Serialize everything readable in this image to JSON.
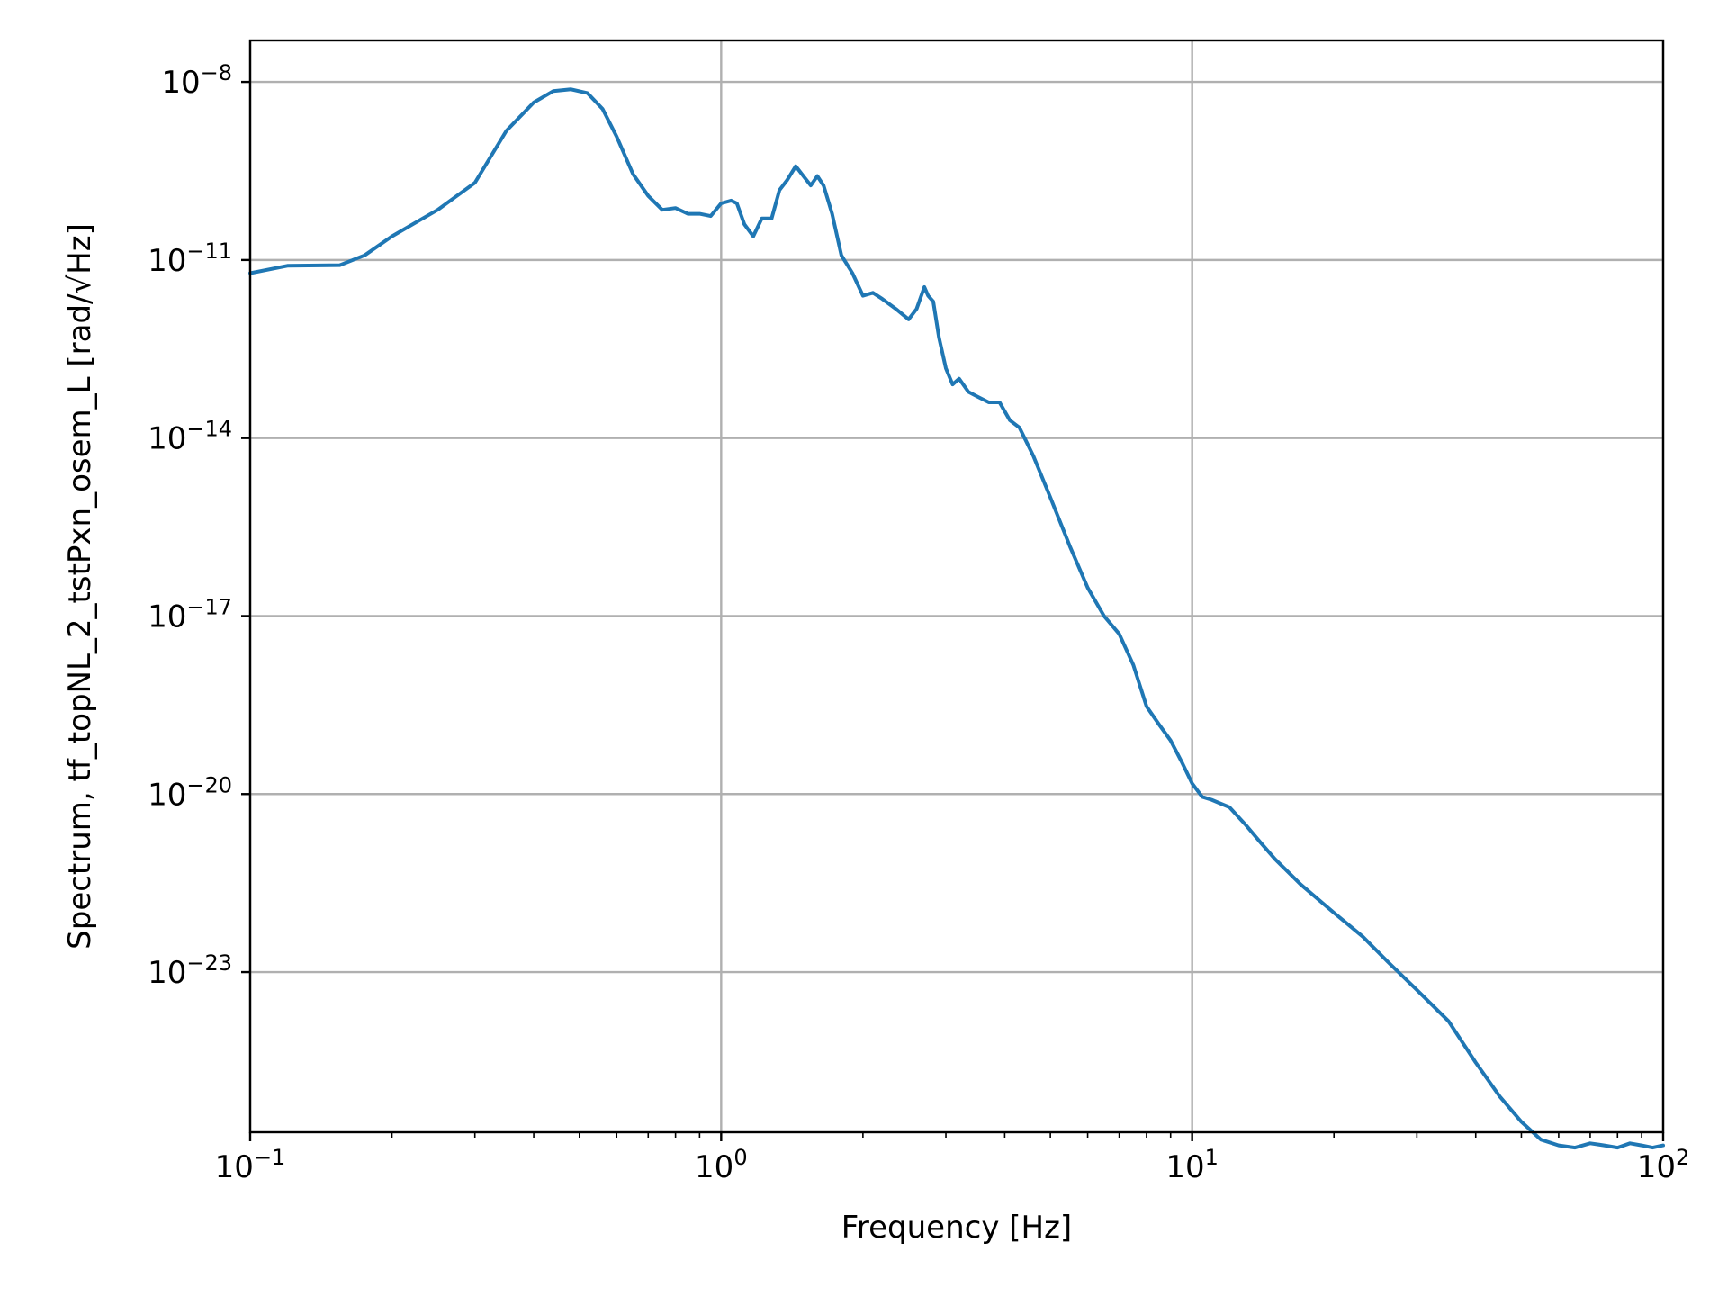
{
  "chart_data": {
    "type": "line",
    "xlabel": "Frequency [Hz]",
    "ylabel": "Spectrum, tf_topNL_2_tstPxn_osem_L [rad/√Hz]",
    "x_scale": "log",
    "y_scale": "log",
    "xlim": [
      0.1,
      100
    ],
    "ylim": [
      2e-26,
      5e-08
    ],
    "grid": true,
    "legend": "none",
    "line_color": "#1f77b4",
    "x_ticks": [
      {
        "base": "10",
        "exp": "−1",
        "value": 0.1
      },
      {
        "base": "10",
        "exp": "0",
        "value": 1
      },
      {
        "base": "10",
        "exp": "1",
        "value": 10
      },
      {
        "base": "10",
        "exp": "2",
        "value": 100
      }
    ],
    "y_ticks": [
      {
        "base": "10",
        "exp": "−8",
        "value": 1e-08
      },
      {
        "base": "10",
        "exp": "−11",
        "value": 1e-11
      },
      {
        "base": "10",
        "exp": "−14",
        "value": 1e-14
      },
      {
        "base": "10",
        "exp": "−17",
        "value": 1e-17
      },
      {
        "base": "10",
        "exp": "−20",
        "value": 1e-20
      },
      {
        "base": "10",
        "exp": "−23",
        "value": 1e-23
      }
    ],
    "series": [
      {
        "x": [
          0.1,
          0.12,
          0.155,
          0.175,
          0.2,
          0.25,
          0.3,
          0.35,
          0.4,
          0.44,
          0.48,
          0.52,
          0.56,
          0.6,
          0.65,
          0.7,
          0.75,
          0.8,
          0.85,
          0.9,
          0.95,
          1.0,
          1.05,
          1.08,
          1.12,
          1.17,
          1.22,
          1.28,
          1.33,
          1.38,
          1.44,
          1.5,
          1.55,
          1.6,
          1.65,
          1.72,
          1.8,
          1.9,
          2.0,
          2.1,
          2.2,
          2.35,
          2.5,
          2.6,
          2.7,
          2.75,
          2.82,
          2.9,
          3.0,
          3.1,
          3.2,
          3.35,
          3.5,
          3.7,
          3.9,
          4.1,
          4.3,
          4.6,
          5.0,
          5.5,
          6.0,
          6.5,
          7.0,
          7.5,
          8.0,
          8.5,
          9.0,
          9.5,
          10.0,
          10.5,
          11,
          12,
          13,
          14,
          15,
          17,
          20,
          23,
          26,
          30,
          35,
          40,
          45,
          50,
          55,
          60,
          65,
          70,
          75,
          80,
          85,
          90,
          95,
          100
        ],
        "y": [
          6e-12,
          8e-12,
          8.2e-12,
          1.2e-11,
          2.5e-11,
          7e-11,
          2e-10,
          1.5e-09,
          4.5e-09,
          7e-09,
          7.5e-09,
          6.5e-09,
          3.5e-09,
          1.2e-09,
          2.8e-10,
          1.2e-10,
          7e-11,
          7.5e-11,
          6e-11,
          6e-11,
          5.5e-11,
          9e-11,
          1e-10,
          9e-11,
          4e-11,
          2.5e-11,
          5e-11,
          5e-11,
          1.5e-10,
          2.2e-10,
          3.8e-10,
          2.5e-10,
          1.8e-10,
          2.6e-10,
          1.8e-10,
          6e-11,
          1.2e-11,
          6e-12,
          2.5e-12,
          2.8e-12,
          2.2e-12,
          1.5e-12,
          1e-12,
          1.5e-12,
          3.5e-12,
          2.5e-12,
          2e-12,
          5e-13,
          1.5e-13,
          8e-14,
          1e-13,
          6e-14,
          5e-14,
          4e-14,
          4e-14,
          2e-14,
          1.5e-14,
          5e-15,
          1e-15,
          1.5e-16,
          3e-17,
          1e-17,
          5e-18,
          1.5e-18,
          3e-19,
          1.5e-19,
          8e-20,
          3.5e-20,
          1.5e-20,
          9e-21,
          8e-21,
          6e-21,
          3e-21,
          1.5e-21,
          8e-22,
          3e-22,
          1e-22,
          4e-23,
          1.5e-23,
          5e-24,
          1.5e-24,
          3e-25,
          8e-26,
          3e-26,
          1.5e-26,
          1.2e-26,
          1.1e-26,
          1.3e-26,
          1.2e-26,
          1.1e-26,
          1.3e-26,
          1.2e-26,
          1.1e-26,
          1.2e-26
        ]
      }
    ]
  }
}
